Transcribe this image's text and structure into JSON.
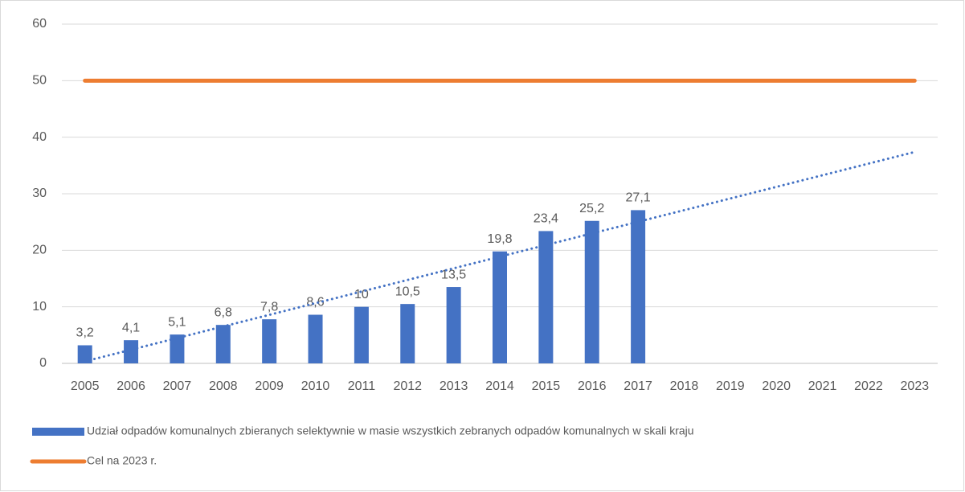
{
  "chart_data": {
    "type": "bar",
    "categories": [
      "2005",
      "2006",
      "2007",
      "2008",
      "2009",
      "2010",
      "2011",
      "2012",
      "2013",
      "2014",
      "2015",
      "2016",
      "2017",
      "2018",
      "2019",
      "2020",
      "2021",
      "2022",
      "2023"
    ],
    "series": [
      {
        "name": "Udział odpadów komunalnych zbieranych selektywnie w masie wszystkich zebranych odpadów komunalnych w skali kraju",
        "type": "bar",
        "color": "#4472c4",
        "values": [
          3.2,
          4.1,
          5.1,
          6.8,
          7.8,
          8.6,
          10,
          10.5,
          13.5,
          19.8,
          23.4,
          25.2,
          27.1,
          null,
          null,
          null,
          null,
          null,
          null
        ],
        "value_labels": [
          "3,2",
          "4,1",
          "5,1",
          "6,8",
          "7,8",
          "8,6",
          "10",
          "10,5",
          "13,5",
          "19,8",
          "23,4",
          "25,2",
          "27,1",
          null,
          null,
          null,
          null,
          null,
          null
        ],
        "trendline": "linear"
      },
      {
        "name": "Cel na 2023 r.",
        "type": "line",
        "color": "#ed7d31",
        "values": [
          50,
          50,
          50,
          50,
          50,
          50,
          50,
          50,
          50,
          50,
          50,
          50,
          50,
          50,
          50,
          50,
          50,
          50,
          50
        ]
      }
    ],
    "ylim": [
      0,
      60
    ],
    "yticks": [
      0,
      10,
      20,
      30,
      40,
      50,
      60
    ],
    "grid": true,
    "legend": "bottom"
  }
}
